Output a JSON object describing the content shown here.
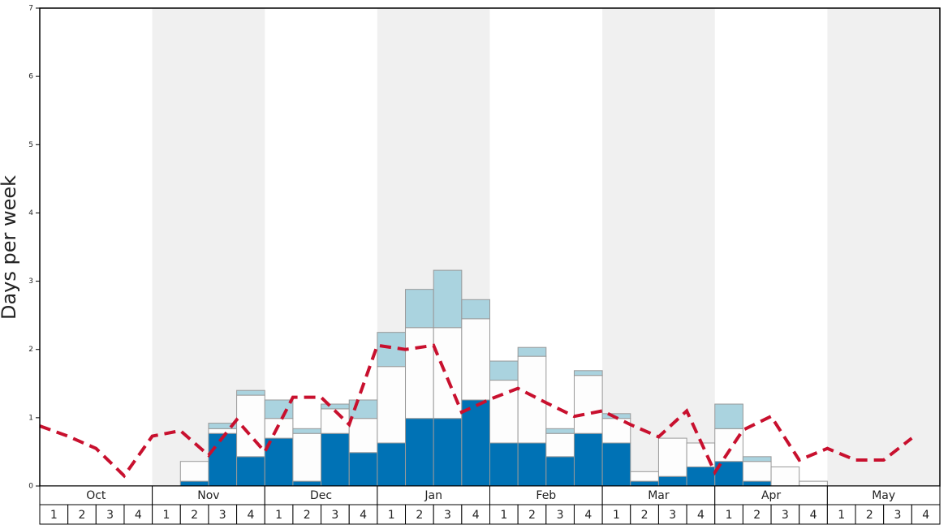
{
  "chart_data": {
    "type": "bar",
    "stacked": true,
    "y_label": "Days per week",
    "months": [
      "Oct",
      "Nov",
      "Dec",
      "Jan",
      "Feb",
      "Mar",
      "Apr",
      "May"
    ],
    "categories": [
      "1",
      "2",
      "3",
      "4",
      "1",
      "2",
      "3",
      "4",
      "1",
      "2",
      "3",
      "4",
      "1",
      "2",
      "3",
      "4",
      "1",
      "2",
      "3",
      "4",
      "1",
      "2",
      "3",
      "4",
      "1",
      "2",
      "3",
      "4",
      "1",
      "2",
      "3",
      "4"
    ],
    "series": [
      {
        "color": "#0072b5",
        "values": [
          0,
          0,
          0,
          0,
          0,
          0.07,
          0.77,
          0.43,
          0.7,
          0.07,
          0.77,
          0.49,
          0.63,
          0.99,
          0.99,
          1.26,
          0.63,
          0.63,
          0.43,
          0.77,
          0.63,
          0.07,
          0.14,
          0.28,
          0.36,
          0.07,
          0,
          0,
          0,
          0,
          0,
          0
        ]
      },
      {
        "color": "#fdfdfd",
        "values": [
          0,
          0,
          0,
          0,
          0,
          0.29,
          0.07,
          0.9,
          0.29,
          0.7,
          0.36,
          0.5,
          1.12,
          1.33,
          1.33,
          1.19,
          0.92,
          1.27,
          0.34,
          0.85,
          0.36,
          0.14,
          0.56,
          0.35,
          0.48,
          0.29,
          0.28,
          0.07,
          0,
          0,
          0,
          0
        ]
      },
      {
        "color": "#aad3df",
        "values": [
          0,
          0,
          0,
          0,
          0,
          0,
          0.08,
          0.07,
          0.27,
          0.07,
          0.07,
          0.27,
          0.5,
          0.56,
          0.84,
          0.28,
          0.28,
          0.13,
          0.07,
          0.07,
          0.07,
          0,
          0,
          0,
          0.36,
          0.07,
          0,
          0,
          0,
          0,
          0,
          0
        ]
      }
    ],
    "line": {
      "color": "#c8102e",
      "values": [
        0.88,
        0.73,
        0.55,
        0.15,
        0.73,
        0.81,
        0.45,
        0.97,
        0.5,
        1.3,
        1.3,
        0.9,
        2.06,
        2.0,
        2.06,
        1.08,
        1.27,
        1.43,
        1.22,
        1.02,
        1.1,
        0.9,
        0.72,
        1.1,
        0.2,
        0.82,
        1.02,
        0.38,
        0.55,
        0.38,
        0.38,
        0.7
      ]
    },
    "ylim": [
      0,
      7
    ],
    "yticks": [
      0,
      1,
      2,
      3,
      4,
      5,
      6,
      7
    ],
    "band_color": "#f0f0f0"
  }
}
